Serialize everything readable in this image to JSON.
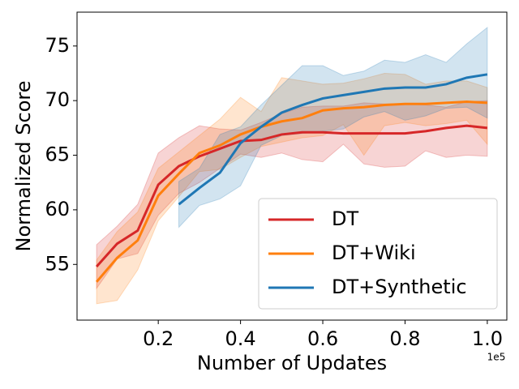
{
  "chart_data": {
    "type": "line",
    "xlabel": "Number of Updates",
    "ylabel": "Normalized Score",
    "x_offset_label": "1e5",
    "x": [
      0.05,
      0.1,
      0.15,
      0.2,
      0.25,
      0.3,
      0.35,
      0.4,
      0.45,
      0.5,
      0.55,
      0.6,
      0.65,
      0.7,
      0.75,
      0.8,
      0.85,
      0.9,
      0.95,
      1.0
    ],
    "xlim": [
      0.0025,
      1.0475
    ],
    "xticks": [
      0.2,
      0.4,
      0.6,
      0.8,
      {
        "value": 1,
        "label": "1.0"
      }
    ],
    "ylim": [
      49.9,
      78.1
    ],
    "yticks": [
      55,
      60,
      65,
      70,
      75
    ],
    "legend": "lower right",
    "series": [
      {
        "name": "DT",
        "color": "#d62728",
        "values": [
          54.8,
          56.9,
          58.1,
          62.3,
          64.0,
          64.9,
          65.6,
          66.3,
          66.4,
          66.9,
          67.1,
          67.1,
          67.0,
          67.0,
          67.0,
          67.0,
          67.2,
          67.5,
          67.7,
          67.5
        ],
        "upper": [
          56.8,
          58.5,
          60.5,
          65.2,
          66.6,
          67.7,
          67.4,
          67.3,
          68.0,
          68.8,
          69.4,
          69.5,
          69.5,
          69.8,
          69.7,
          69.7,
          69.6,
          69.4,
          69.9,
          70.0
        ],
        "lower": [
          52.8,
          55.5,
          56.0,
          59.5,
          61.5,
          62.5,
          63.8,
          65.1,
          64.8,
          65.2,
          64.6,
          64.4,
          66.0,
          64.2,
          63.9,
          64.0,
          65.4,
          64.8,
          65.0,
          64.9
        ]
      },
      {
        "name": "DT+Wiki",
        "color": "#ff7f0e",
        "values": [
          53.4,
          55.6,
          57.2,
          61.3,
          63.3,
          65.2,
          65.9,
          66.9,
          67.6,
          68.1,
          68.4,
          69.1,
          69.3,
          69.4,
          69.6,
          69.7,
          69.7,
          69.8,
          69.9,
          69.8
        ],
        "upper": [
          55.4,
          58.0,
          59.8,
          63.8,
          65.3,
          66.8,
          68.3,
          70.3,
          69.0,
          72.1,
          71.8,
          71.5,
          71.6,
          72.0,
          72.5,
          72.4,
          71.5,
          71.8,
          71.8,
          71.2
        ],
        "lower": [
          51.4,
          51.7,
          54.5,
          59.0,
          61.2,
          63.5,
          63.7,
          64.8,
          65.8,
          66.2,
          66.6,
          66.8,
          67.8,
          65.0,
          67.7,
          68.0,
          67.7,
          67.9,
          68.2,
          66.0
        ]
      },
      {
        "name": "DT+Synthetic",
        "color": "#1f77b4",
        "values": [
          null,
          null,
          null,
          null,
          60.5,
          62.0,
          63.4,
          66.1,
          67.6,
          68.9,
          69.6,
          70.2,
          70.5,
          70.8,
          71.1,
          71.2,
          71.2,
          71.5,
          72.1,
          72.4
        ],
        "upper": [
          null,
          null,
          null,
          null,
          62.6,
          63.8,
          66.9,
          67.6,
          69.6,
          71.4,
          73.2,
          73.2,
          72.3,
          72.7,
          73.7,
          73.5,
          74.2,
          73.5,
          75.2,
          76.7
        ],
        "lower": [
          null,
          null,
          null,
          null,
          58.4,
          60.4,
          61.0,
          62.2,
          65.9,
          66.8,
          67.0,
          67.2,
          67.4,
          68.5,
          69.0,
          68.2,
          68.6,
          69.3,
          69.4,
          68.4
        ]
      }
    ]
  }
}
